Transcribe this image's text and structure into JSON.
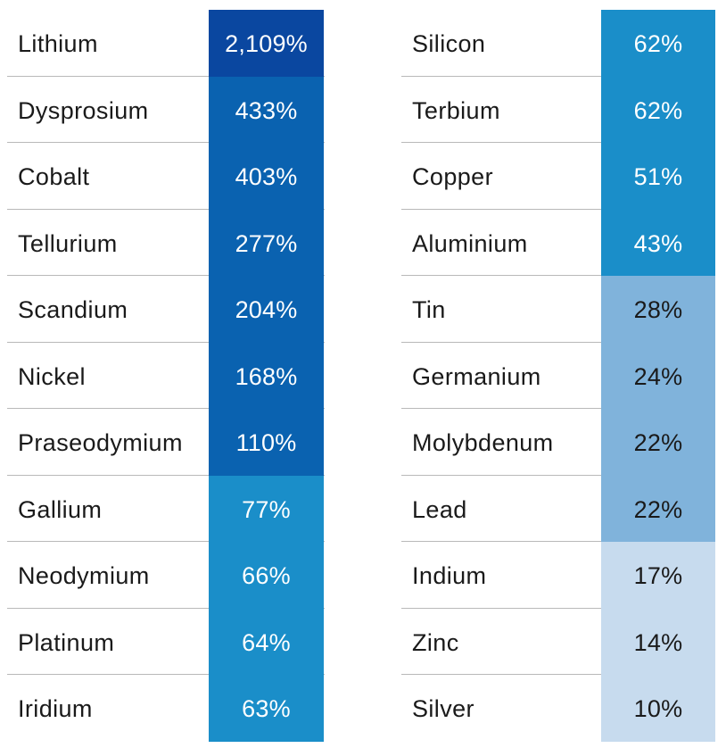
{
  "chart_data": {
    "type": "table",
    "columns": [
      {
        "rows": [
          {
            "name": "Lithium",
            "value": "2,109%",
            "color": "#0a47a0",
            "text_color": "#ffffff"
          },
          {
            "name": "Dysprosium",
            "value": "433%",
            "color": "#0a62b0",
            "text_color": "#ffffff"
          },
          {
            "name": "Cobalt",
            "value": "403%",
            "color": "#0a62b0",
            "text_color": "#ffffff"
          },
          {
            "name": "Tellurium",
            "value": "277%",
            "color": "#0a62b0",
            "text_color": "#ffffff"
          },
          {
            "name": "Scandium",
            "value": "204%",
            "color": "#0a62b0",
            "text_color": "#ffffff"
          },
          {
            "name": "Nickel",
            "value": "168%",
            "color": "#0a62b0",
            "text_color": "#ffffff"
          },
          {
            "name": "Praseodymium",
            "value": "110%",
            "color": "#0a62b0",
            "text_color": "#ffffff"
          },
          {
            "name": "Gallium",
            "value": "77%",
            "color": "#1a8ec9",
            "text_color": "#ffffff"
          },
          {
            "name": "Neodymium",
            "value": "66%",
            "color": "#1a8ec9",
            "text_color": "#ffffff"
          },
          {
            "name": "Platinum",
            "value": "64%",
            "color": "#1a8ec9",
            "text_color": "#ffffff"
          },
          {
            "name": "Iridium",
            "value": "63%",
            "color": "#1a8ec9",
            "text_color": "#ffffff"
          }
        ]
      },
      {
        "rows": [
          {
            "name": "Silicon",
            "value": "62%",
            "color": "#1a8ec9",
            "text_color": "#ffffff"
          },
          {
            "name": "Terbium",
            "value": "62%",
            "color": "#1a8ec9",
            "text_color": "#ffffff"
          },
          {
            "name": "Copper",
            "value": "51%",
            "color": "#1a8ec9",
            "text_color": "#ffffff"
          },
          {
            "name": "Aluminium",
            "value": "43%",
            "color": "#1a8ec9",
            "text_color": "#ffffff"
          },
          {
            "name": "Tin",
            "value": "28%",
            "color": "#80b3db",
            "text_color": "#1a1a1a"
          },
          {
            "name": "Germanium",
            "value": "24%",
            "color": "#80b3db",
            "text_color": "#1a1a1a"
          },
          {
            "name": "Molybdenum",
            "value": "22%",
            "color": "#80b3db",
            "text_color": "#1a1a1a"
          },
          {
            "name": "Lead",
            "value": "22%",
            "color": "#80b3db",
            "text_color": "#1a1a1a"
          },
          {
            "name": "Indium",
            "value": "17%",
            "color": "#c7dbee",
            "text_color": "#1a1a1a"
          },
          {
            "name": "Zinc",
            "value": "14%",
            "color": "#c7dbee",
            "text_color": "#1a1a1a"
          },
          {
            "name": "Silver",
            "value": "10%",
            "color": "#c7dbee",
            "text_color": "#1a1a1a"
          }
        ]
      }
    ]
  }
}
